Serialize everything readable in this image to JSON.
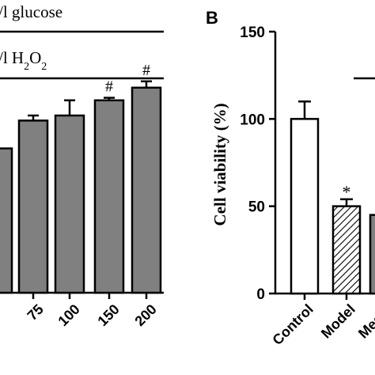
{
  "chart_data": [
    {
      "type": "bar",
      "annotation_lines": [
        {
          "prefix": "/l glucose",
          "subscript_parts": []
        },
        {
          "prefix": "/l H",
          "subscript_parts": [
            "2",
            "O",
            "2"
          ]
        }
      ],
      "categories": [
        "",
        "75",
        "100",
        "150",
        "200"
      ],
      "values": [
        57,
        68,
        70,
        76,
        81
      ],
      "errors": [
        0,
        2,
        6,
        1,
        2.5
      ],
      "significance": [
        "",
        "",
        "",
        "#",
        "#"
      ],
      "bar_color": "#808080"
    },
    {
      "type": "bar",
      "panel_label": "B",
      "ylabel": "Cell viability (%)",
      "ylim": [
        0,
        150
      ],
      "yticks": [
        0,
        50,
        100,
        150
      ],
      "categories": [
        "Control",
        "Model",
        "Mediu"
      ],
      "values": [
        100,
        50,
        45
      ],
      "errors": [
        10,
        4,
        0
      ],
      "significance": [
        "",
        "*",
        ""
      ],
      "bar_fills": [
        "white",
        "hatched",
        "gray"
      ]
    }
  ]
}
